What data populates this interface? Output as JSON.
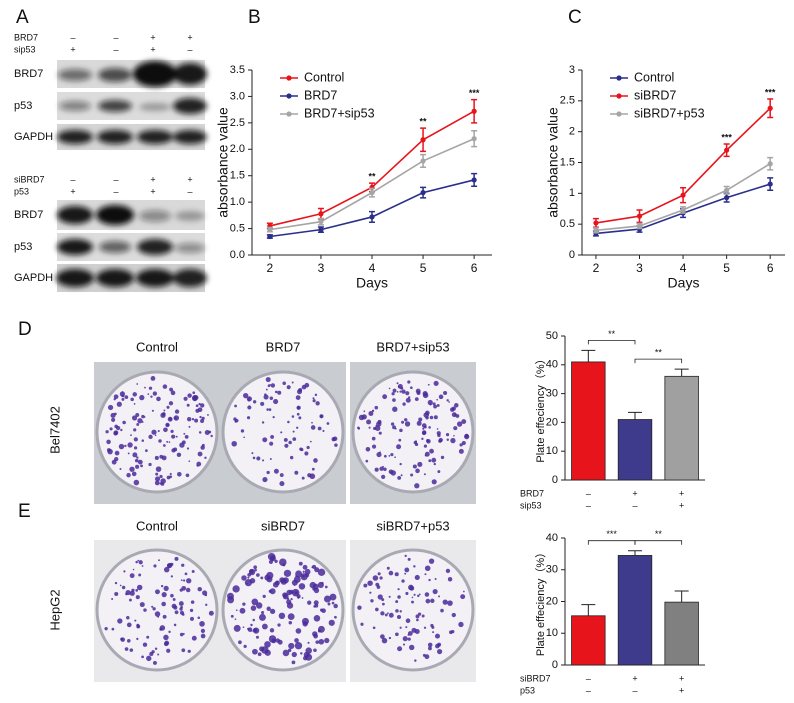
{
  "panel_labels": [
    "A",
    "B",
    "C",
    "D",
    "E"
  ],
  "blots": [
    {
      "conditions": [
        {
          "name": "BRD7",
          "marks": [
            "–",
            "–",
            "+",
            "+"
          ]
        },
        {
          "name": "sip53",
          "marks": [
            "+",
            "–",
            "+",
            "–"
          ]
        }
      ],
      "bands": [
        "BRD7",
        "p53",
        "GAPDH"
      ]
    },
    {
      "conditions": [
        {
          "name": "siBRD7",
          "marks": [
            "–",
            "–",
            "+",
            "+"
          ]
        },
        {
          "name": "p53",
          "marks": [
            "+",
            "–",
            "+",
            "–"
          ]
        }
      ],
      "bands": [
        "BRD7",
        "p53",
        "GAPDH"
      ]
    }
  ],
  "colony": [
    {
      "row_label": "Bel7402",
      "columns": [
        "Control",
        "BRD7",
        "BRD7+sip53"
      ]
    },
    {
      "row_label": "HepG2",
      "columns": [
        "Control",
        "siBRD7",
        "siBRD7+p53"
      ]
    }
  ],
  "chart_data": [
    {
      "type": "line",
      "x_label": "Days",
      "y_label": "absorbance value",
      "x": [
        2,
        3,
        4,
        5,
        6
      ],
      "xlim": [
        1.65,
        6.35
      ],
      "xticks": [
        2,
        3,
        4,
        5,
        6
      ],
      "ylim": [
        0,
        3.5
      ],
      "yticks": [
        {
          "value": 0,
          "label": "0.0"
        },
        0.5,
        {
          "value": 1,
          "label": "1.0"
        },
        1.5,
        {
          "value": 2,
          "label": "2.0"
        },
        2.5,
        {
          "value": 3,
          "label": "3.0"
        },
        3.5
      ],
      "legend": "upper left",
      "series": [
        {
          "name": "Control",
          "color": "#e8141c",
          "values": [
            0.55,
            0.78,
            1.28,
            2.18,
            2.72
          ],
          "errors": [
            0.05,
            0.1,
            0.08,
            0.22,
            0.22
          ]
        },
        {
          "name": "BRD7",
          "color": "#2b2e8c",
          "values": [
            0.35,
            0.48,
            0.72,
            1.18,
            1.42
          ],
          "errors": [
            0.03,
            0.05,
            0.1,
            0.1,
            0.12
          ]
        },
        {
          "name": "BRD7+sip53",
          "color": "#a5a5a5",
          "values": [
            0.48,
            0.63,
            1.18,
            1.78,
            2.2
          ],
          "errors": [
            0.04,
            0.06,
            0.08,
            0.12,
            0.15
          ]
        }
      ],
      "annotations": [
        {
          "text": "**",
          "x": 4
        },
        {
          "text": "**",
          "x": 5
        },
        {
          "text": "***",
          "x": 6
        }
      ]
    },
    {
      "type": "line",
      "x_label": "Days",
      "y_label": "absorbance value",
      "x": [
        2,
        3,
        4,
        5,
        6
      ],
      "xlim": [
        1.68,
        6.34
      ],
      "xticks": [
        2,
        3,
        4,
        5,
        6
      ],
      "ylim": [
        0,
        3
      ],
      "yticks": [
        0,
        0.5,
        1,
        1.5,
        2,
        2.5,
        3
      ],
      "legend": "upper left",
      "series": [
        {
          "name": "Control",
          "color": "#2b2e8c",
          "values": [
            0.35,
            0.42,
            0.68,
            0.93,
            1.15
          ],
          "errors": [
            0.04,
            0.05,
            0.07,
            0.07,
            0.1
          ]
        },
        {
          "name": "siBRD7",
          "color": "#e8141c",
          "values": [
            0.52,
            0.63,
            0.97,
            1.7,
            2.38
          ],
          "errors": [
            0.07,
            0.1,
            0.12,
            0.1,
            0.15
          ]
        },
        {
          "name": "siBRD7+p53",
          "color": "#a5a5a5",
          "values": [
            0.4,
            0.47,
            0.73,
            1.05,
            1.48
          ],
          "errors": [
            0.04,
            0.04,
            0.05,
            0.06,
            0.1
          ]
        }
      ],
      "annotations": [
        {
          "text": "***",
          "x": 5
        },
        {
          "text": "***",
          "x": 6
        }
      ]
    },
    {
      "type": "bar",
      "y_label": "Plate effeciency（%）",
      "categories": [
        null,
        null,
        null
      ],
      "values": [
        41,
        21,
        36
      ],
      "errors": [
        4,
        2.5,
        2.5
      ],
      "colors": [
        "#e8141c",
        "#3e3a8c",
        "#a0a0a0"
      ],
      "ylim": [
        0,
        50
      ],
      "yticks": [
        0,
        10,
        20,
        30,
        40,
        50
      ],
      "conditions": [
        {
          "name": "BRD7",
          "marks": [
            "–",
            "+",
            "+"
          ]
        },
        {
          "name": "sip53",
          "marks": [
            "–",
            "–",
            "+"
          ]
        }
      ],
      "brackets": [
        {
          "from": 0,
          "to": 1,
          "text": "**"
        },
        {
          "from": 1,
          "to": 2,
          "text": "**"
        }
      ]
    },
    {
      "type": "bar",
      "y_label": "Plate effeciency（%）",
      "categories": [
        null,
        null,
        null
      ],
      "values": [
        15.5,
        34.5,
        19.8
      ],
      "errors": [
        3.5,
        1.5,
        3.5
      ],
      "colors": [
        "#e8141c",
        "#3e3a8c",
        "#808080"
      ],
      "ylim": [
        0,
        40
      ],
      "yticks": [
        0,
        10,
        20,
        30,
        40
      ],
      "conditions": [
        {
          "name": "siBRD7",
          "marks": [
            "–",
            "+",
            "+"
          ]
        },
        {
          "name": "p53",
          "marks": [
            "–",
            "–",
            "+"
          ]
        }
      ],
      "brackets": [
        {
          "from": 0,
          "to": 1,
          "text": "***"
        },
        {
          "from": 1,
          "to": 2,
          "text": "**"
        }
      ]
    }
  ]
}
